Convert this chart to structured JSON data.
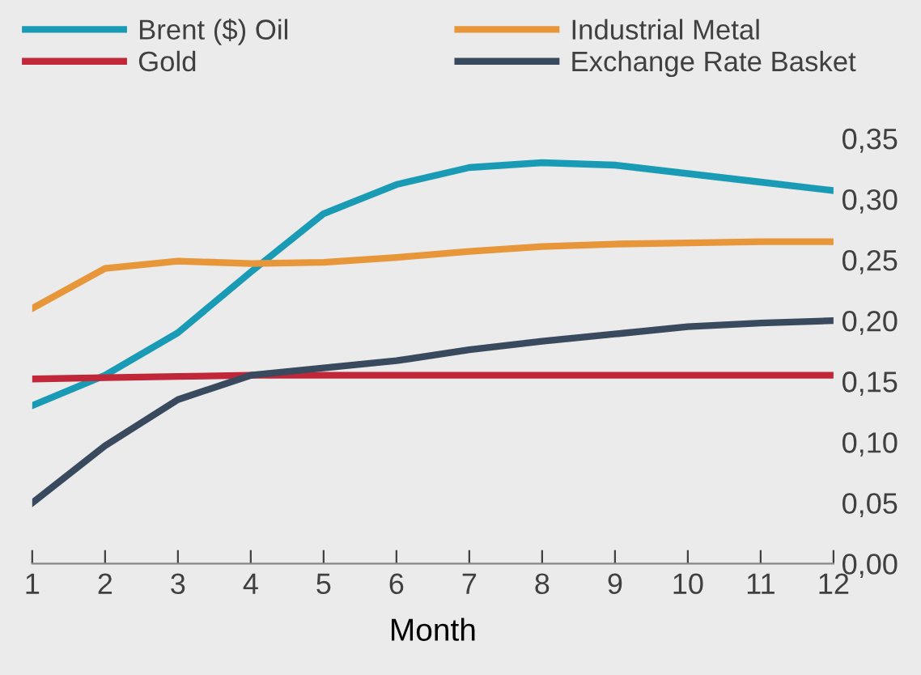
{
  "chart_data": {
    "type": "line",
    "xlabel": "Month",
    "x": [
      1,
      2,
      3,
      4,
      5,
      6,
      7,
      8,
      9,
      10,
      11,
      12
    ],
    "series": [
      {
        "name": "Brent ($) Oil",
        "color": "#1a9bb5",
        "values": [
          0.13,
          0.155,
          0.19,
          0.24,
          0.288,
          0.312,
          0.326,
          0.33,
          0.328,
          0.321,
          0.314,
          0.307
        ]
      },
      {
        "name": "Industrial Metal",
        "color": "#e8963a",
        "values": [
          0.21,
          0.243,
          0.249,
          0.247,
          0.248,
          0.252,
          0.257,
          0.261,
          0.263,
          0.264,
          0.265,
          0.265
        ]
      },
      {
        "name": "Gold",
        "color": "#c0283a",
        "values": [
          0.152,
          0.153,
          0.154,
          0.155,
          0.155,
          0.155,
          0.155,
          0.155,
          0.155,
          0.155,
          0.155,
          0.155
        ]
      },
      {
        "name": "Exchange Rate Basket",
        "color": "#3a4a5e",
        "values": [
          0.05,
          0.097,
          0.135,
          0.155,
          0.161,
          0.167,
          0.176,
          0.183,
          0.189,
          0.195,
          0.198,
          0.2
        ]
      }
    ],
    "xlim": [
      1,
      12
    ],
    "xticks": [
      1,
      2,
      3,
      4,
      5,
      6,
      7,
      8,
      9,
      10,
      11,
      12
    ],
    "ylim": [
      0,
      0.35
    ],
    "yticks": [
      {
        "value": 0,
        "label": "0,00"
      },
      {
        "value": 0.05,
        "label": "0,05"
      },
      {
        "value": 0.1,
        "label": "0,10"
      },
      {
        "value": 0.15,
        "label": "0,15"
      },
      {
        "value": 0.2,
        "label": "0,20"
      },
      {
        "value": 0.25,
        "label": "0,25"
      },
      {
        "value": 0.3,
        "label": "0,30"
      },
      {
        "value": 0.35,
        "label": "0,35"
      }
    ],
    "grid": false,
    "legend": "top",
    "marker": "none",
    "line_style": "solid"
  }
}
